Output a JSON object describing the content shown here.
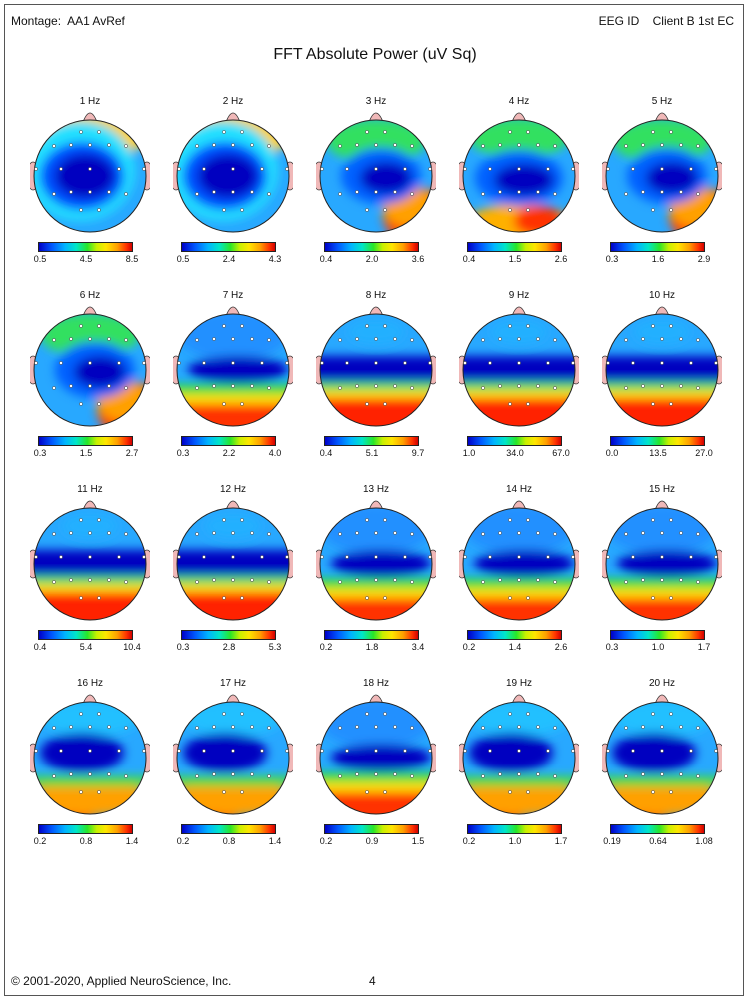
{
  "header": {
    "montage_label": "Montage:",
    "montage_value": "AA1 AvRef",
    "eeg_id_label": "EEG ID",
    "client": "Client B 1st EC"
  },
  "title": "FFT Absolute Power  (uV Sq)",
  "footer": {
    "copyright": "© 2001-2020, Applied NeuroScience, Inc.",
    "page_number": "4"
  },
  "maps": [
    {
      "label": "1 Hz",
      "ticks": [
        "0.5",
        "4.5",
        "8.5"
      ],
      "pattern": "frontal-edge"
    },
    {
      "label": "2 Hz",
      "ticks": [
        "0.5",
        "2.4",
        "4.3"
      ],
      "pattern": "frontal-edge"
    },
    {
      "label": "3 Hz",
      "ticks": [
        "0.4",
        "2.0",
        "3.6"
      ],
      "pattern": "right-posterior"
    },
    {
      "label": "4 Hz",
      "ticks": [
        "0.4",
        "1.5",
        "2.6"
      ],
      "pattern": "posterior-bump"
    },
    {
      "label": "5 Hz",
      "ticks": [
        "0.3",
        "1.6",
        "2.9"
      ],
      "pattern": "right-posterior"
    },
    {
      "label": "6 Hz",
      "ticks": [
        "0.3",
        "1.5",
        "2.7"
      ],
      "pattern": "right-posterior"
    },
    {
      "label": "7 Hz",
      "ticks": [
        "0.3",
        "2.2",
        "4.0"
      ],
      "pattern": "posterior"
    },
    {
      "label": "8 Hz",
      "ticks": [
        "0.4",
        "5.1",
        "9.7"
      ],
      "pattern": "posterior-strong"
    },
    {
      "label": "9 Hz",
      "ticks": [
        "1.0",
        "34.0",
        "67.0"
      ],
      "pattern": "posterior-strong"
    },
    {
      "label": "10 Hz",
      "ticks": [
        "0.0",
        "13.5",
        "27.0"
      ],
      "pattern": "posterior-strong"
    },
    {
      "label": "11 Hz",
      "ticks": [
        "0.4",
        "5.4",
        "10.4"
      ],
      "pattern": "posterior-strong"
    },
    {
      "label": "12 Hz",
      "ticks": [
        "0.3",
        "2.8",
        "5.3"
      ],
      "pattern": "posterior-strong"
    },
    {
      "label": "13 Hz",
      "ticks": [
        "0.2",
        "1.8",
        "3.4"
      ],
      "pattern": "posterior"
    },
    {
      "label": "14 Hz",
      "ticks": [
        "0.2",
        "1.4",
        "2.6"
      ],
      "pattern": "posterior"
    },
    {
      "label": "15 Hz",
      "ticks": [
        "0.3",
        "1.0",
        "1.7"
      ],
      "pattern": "posterior"
    },
    {
      "label": "16 Hz",
      "ticks": [
        "0.2",
        "0.8",
        "1.4"
      ],
      "pattern": "left-posterior"
    },
    {
      "label": "17 Hz",
      "ticks": [
        "0.2",
        "0.8",
        "1.4"
      ],
      "pattern": "left-posterior"
    },
    {
      "label": "18 Hz",
      "ticks": [
        "0.2",
        "0.9",
        "1.5"
      ],
      "pattern": "posterior"
    },
    {
      "label": "19 Hz",
      "ticks": [
        "0.2",
        "1.0",
        "1.7"
      ],
      "pattern": "left-posterior"
    },
    {
      "label": "20 Hz",
      "ticks": [
        "0.19",
        "0.64",
        "1.08"
      ],
      "pattern": "left-posterior"
    }
  ]
}
